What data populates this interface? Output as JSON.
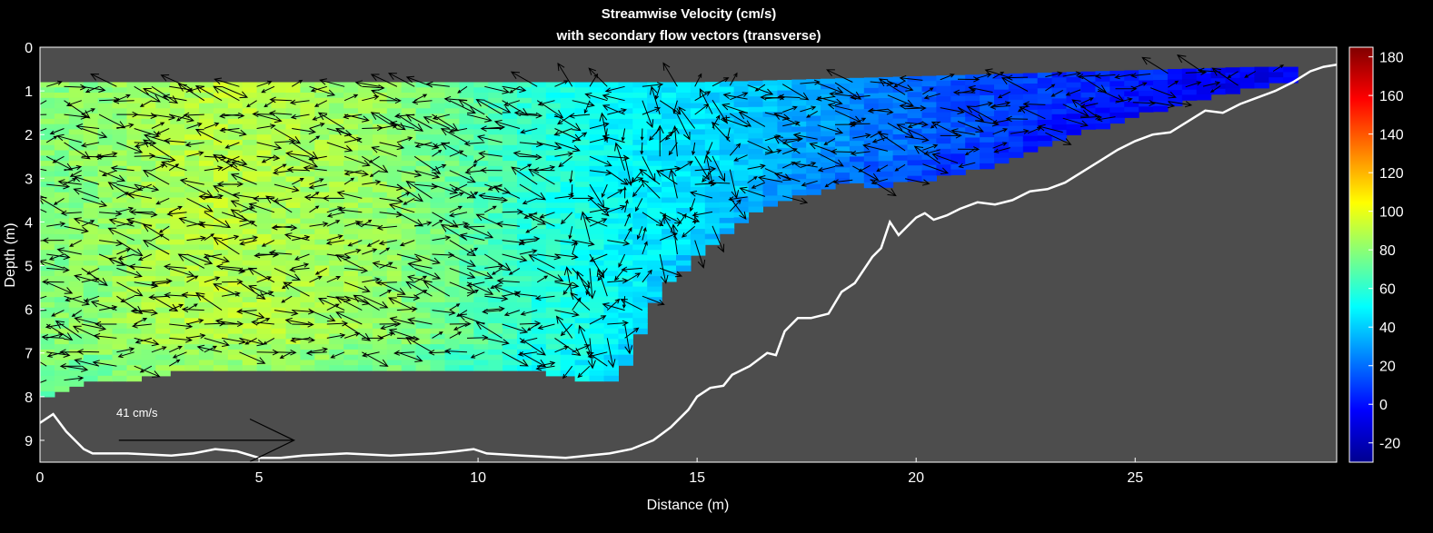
{
  "chart_data": {
    "type": "heatmap",
    "title": "Streamwise Velocity (cm/s)",
    "subtitle": "with secondary flow vectors (transverse)",
    "xlabel": "Distance (m)",
    "ylabel": "Depth (m)",
    "xlim": [
      0,
      29.6
    ],
    "ylim": [
      0,
      9.5
    ],
    "y_reversed": true,
    "x_ticks": [
      "0",
      "5",
      "10",
      "15",
      "20",
      "25"
    ],
    "y_ticks": [
      "0",
      "1",
      "2",
      "3",
      "4",
      "5",
      "6",
      "7",
      "8",
      "9"
    ],
    "background_color": "#4d4d4d",
    "grid": false,
    "colorbar": {
      "colormap": "jet",
      "range": [
        -30,
        185
      ],
      "ticks": [
        "-20",
        "0",
        "20",
        "40",
        "60",
        "80",
        "100",
        "120",
        "140",
        "160",
        "180"
      ]
    },
    "reference_vector": {
      "label": "41 cm/s",
      "x": 1.8,
      "y": 9.0,
      "length_m": 4.0
    },
    "bed_profile": {
      "x": [
        0,
        0.3,
        0.6,
        1.0,
        1.2,
        2.0,
        3.0,
        3.5,
        4.0,
        4.5,
        5.0,
        5.5,
        6.0,
        7.0,
        8.0,
        9.0,
        9.5,
        9.9,
        10.2,
        11.0,
        12.0,
        12.5,
        13.0,
        13.5,
        14.0,
        14.4,
        14.8,
        15.0,
        15.3,
        15.6,
        15.8,
        16.2,
        16.6,
        16.8,
        17.0,
        17.3,
        17.6,
        18.0,
        18.3,
        18.6,
        19.0,
        19.2,
        19.4,
        19.6,
        19.8,
        20.0,
        20.2,
        20.4,
        20.7,
        21.0,
        21.4,
        21.8,
        22.2,
        22.6,
        23.0,
        23.4,
        23.8,
        24.2,
        24.6,
        25.0,
        25.4,
        25.8,
        26.2,
        26.6,
        27.0,
        27.4,
        27.8,
        28.2,
        28.6,
        29.0,
        29.3,
        29.6
      ],
      "y": [
        8.6,
        8.4,
        8.8,
        9.2,
        9.3,
        9.3,
        9.35,
        9.3,
        9.2,
        9.25,
        9.4,
        9.4,
        9.35,
        9.3,
        9.35,
        9.3,
        9.25,
        9.2,
        9.3,
        9.35,
        9.4,
        9.35,
        9.3,
        9.2,
        9.0,
        8.7,
        8.3,
        8.0,
        7.8,
        7.75,
        7.5,
        7.3,
        7.0,
        7.05,
        6.5,
        6.2,
        6.2,
        6.1,
        5.6,
        5.4,
        4.8,
        4.6,
        4.0,
        4.3,
        4.1,
        3.9,
        3.8,
        3.95,
        3.85,
        3.7,
        3.55,
        3.6,
        3.5,
        3.3,
        3.25,
        3.1,
        2.85,
        2.6,
        2.35,
        2.15,
        2.0,
        1.95,
        1.7,
        1.45,
        1.5,
        1.3,
        1.15,
        1.0,
        0.8,
        0.55,
        0.45,
        0.4
      ]
    },
    "velocity_field": {
      "x": [
        0,
        1,
        2,
        3,
        4,
        5,
        6,
        7,
        8,
        9,
        10,
        11,
        12,
        13,
        14,
        15,
        16,
        17,
        18,
        19,
        20,
        21,
        22,
        23,
        24,
        25,
        26,
        27,
        28
      ],
      "mean_velocity_cm_s": [
        78,
        80,
        84,
        88,
        90,
        88,
        86,
        84,
        80,
        74,
        68,
        60,
        56,
        50,
        46,
        44,
        40,
        34,
        28,
        22,
        18,
        14,
        10,
        8,
        6,
        4,
        2,
        0,
        0
      ],
      "wetted_depth_m": [
        8.0,
        7.6,
        7.6,
        7.3,
        7.3,
        7.3,
        7.3,
        7.3,
        7.3,
        7.3,
        7.3,
        7.3,
        7.5,
        7.6,
        5.5,
        4.6,
        3.8,
        3.4,
        3.1,
        3.1,
        3.0,
        2.8,
        2.5,
        2.1,
        1.8,
        1.5,
        1.2,
        1.0,
        0.8
      ]
    }
  }
}
